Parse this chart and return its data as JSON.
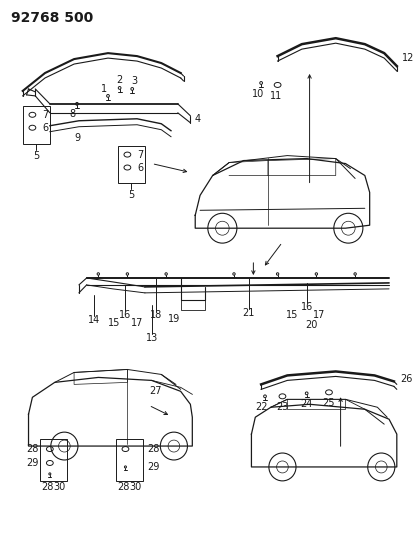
{
  "title": "92768 500",
  "bg_color": "#ffffff",
  "line_color": "#1a1a1a",
  "title_fontsize": 10,
  "label_fontsize": 7,
  "fig_width": 4.16,
  "fig_height": 5.33,
  "dpi": 100
}
